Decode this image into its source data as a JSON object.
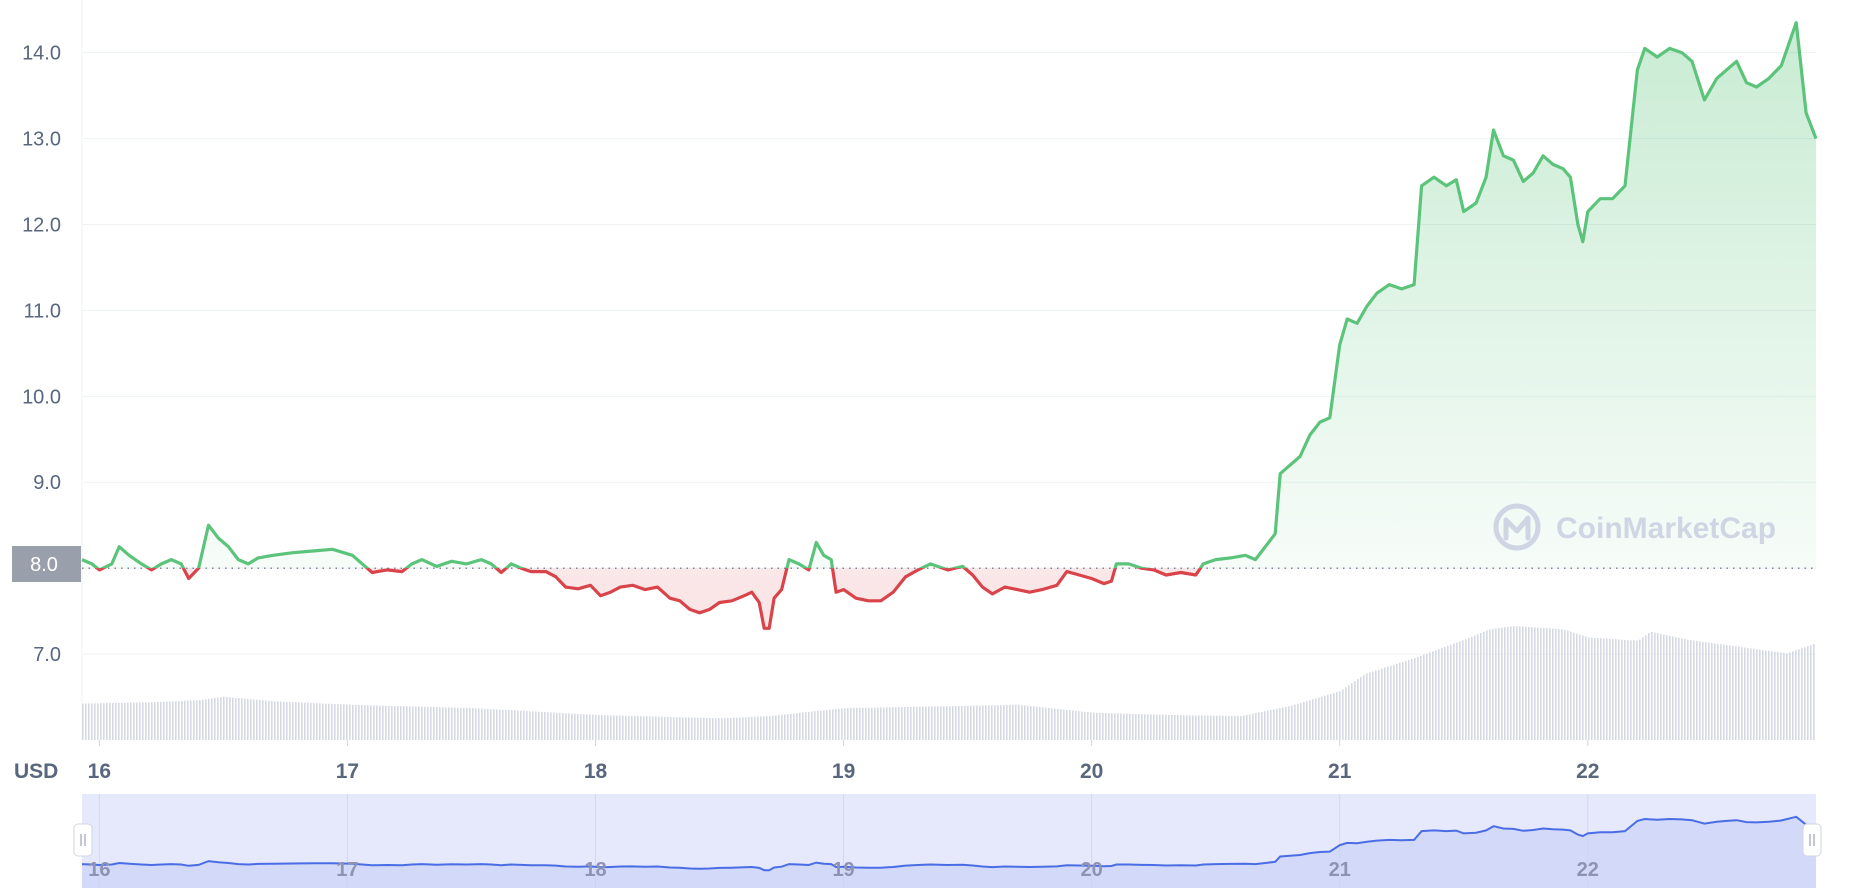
{
  "chart_data": {
    "type": "area",
    "currency_label": "USD",
    "reference_price": 8.0,
    "reference_label": "8.0",
    "y_ticks": [
      "7.0",
      "8.0",
      "9.0",
      "10.0",
      "11.0",
      "12.0",
      "13.0",
      "14.0"
    ],
    "ylim": [
      6.0,
      14.45
    ],
    "grid": true,
    "x_ticks": [
      "16",
      "17",
      "18",
      "19",
      "20",
      "21",
      "22"
    ],
    "xlim": [
      15.93,
      22.92
    ],
    "watermark": "CoinMarketCap",
    "colors": {
      "up": "#16c784",
      "down": "#ea3943",
      "line_up": "#5bc47a",
      "line_down": "#d9434a",
      "area_up": "#5bc47a",
      "grid": "#eff2f5",
      "volume": "#d4d9e3",
      "navigator_fill": "#e6e9fb",
      "navigator_line": "#4a6de5",
      "reference_label_bg": "#9aa0ab"
    },
    "series": [
      {
        "values": [
          [
            15.93,
            8.1
          ],
          [
            15.97,
            8.05
          ],
          [
            16.0,
            7.98
          ],
          [
            16.05,
            8.05
          ],
          [
            16.08,
            8.25
          ],
          [
            16.12,
            8.15
          ],
          [
            16.17,
            8.05
          ],
          [
            16.21,
            7.98
          ],
          [
            16.25,
            8.05
          ],
          [
            16.29,
            8.1
          ],
          [
            16.33,
            8.05
          ],
          [
            16.36,
            7.88
          ],
          [
            16.4,
            8.0
          ],
          [
            16.44,
            8.5
          ],
          [
            16.48,
            8.35
          ],
          [
            16.52,
            8.25
          ],
          [
            16.56,
            8.1
          ],
          [
            16.6,
            8.05
          ],
          [
            16.64,
            8.12
          ],
          [
            16.7,
            8.15
          ],
          [
            16.78,
            8.18
          ],
          [
            16.86,
            8.2
          ],
          [
            16.94,
            8.22
          ],
          [
            17.02,
            8.15
          ],
          [
            17.06,
            8.05
          ],
          [
            17.1,
            7.95
          ],
          [
            17.16,
            7.98
          ],
          [
            17.22,
            7.96
          ],
          [
            17.26,
            8.05
          ],
          [
            17.3,
            8.1
          ],
          [
            17.36,
            8.02
          ],
          [
            17.42,
            8.08
          ],
          [
            17.48,
            8.05
          ],
          [
            17.54,
            8.1
          ],
          [
            17.58,
            8.05
          ],
          [
            17.62,
            7.95
          ],
          [
            17.66,
            8.05
          ],
          [
            17.7,
            8.0
          ],
          [
            17.74,
            7.96
          ],
          [
            17.8,
            7.96
          ],
          [
            17.84,
            7.9
          ],
          [
            17.88,
            7.78
          ],
          [
            17.93,
            7.76
          ],
          [
            17.98,
            7.8
          ],
          [
            18.02,
            7.68
          ],
          [
            18.06,
            7.72
          ],
          [
            18.1,
            7.78
          ],
          [
            18.15,
            7.8
          ],
          [
            18.2,
            7.75
          ],
          [
            18.25,
            7.78
          ],
          [
            18.3,
            7.65
          ],
          [
            18.34,
            7.62
          ],
          [
            18.38,
            7.52
          ],
          [
            18.42,
            7.48
          ],
          [
            18.46,
            7.52
          ],
          [
            18.5,
            7.6
          ],
          [
            18.55,
            7.62
          ],
          [
            18.6,
            7.68
          ],
          [
            18.63,
            7.72
          ],
          [
            18.66,
            7.6
          ],
          [
            18.68,
            7.3
          ],
          [
            18.7,
            7.3
          ],
          [
            18.72,
            7.65
          ],
          [
            18.75,
            7.75
          ],
          [
            18.78,
            8.1
          ],
          [
            18.82,
            8.05
          ],
          [
            18.86,
            7.98
          ],
          [
            18.89,
            8.3
          ],
          [
            18.92,
            8.15
          ],
          [
            18.95,
            8.1
          ],
          [
            18.97,
            7.72
          ],
          [
            19.0,
            7.75
          ],
          [
            19.05,
            7.65
          ],
          [
            19.1,
            7.62
          ],
          [
            19.15,
            7.62
          ],
          [
            19.2,
            7.72
          ],
          [
            19.25,
            7.9
          ],
          [
            19.3,
            7.98
          ],
          [
            19.35,
            8.05
          ],
          [
            19.42,
            7.98
          ],
          [
            19.48,
            8.02
          ],
          [
            19.52,
            7.92
          ],
          [
            19.56,
            7.78
          ],
          [
            19.6,
            7.7
          ],
          [
            19.65,
            7.78
          ],
          [
            19.7,
            7.75
          ],
          [
            19.75,
            7.72
          ],
          [
            19.8,
            7.75
          ],
          [
            19.86,
            7.8
          ],
          [
            19.9,
            7.96
          ],
          [
            19.95,
            7.92
          ],
          [
            20.0,
            7.88
          ],
          [
            20.05,
            7.82
          ],
          [
            20.08,
            7.85
          ],
          [
            20.1,
            8.05
          ],
          [
            20.15,
            8.05
          ],
          [
            20.2,
            8.0
          ],
          [
            20.25,
            7.98
          ],
          [
            20.3,
            7.92
          ],
          [
            20.36,
            7.95
          ],
          [
            20.42,
            7.92
          ],
          [
            20.45,
            8.05
          ],
          [
            20.5,
            8.1
          ],
          [
            20.56,
            8.12
          ],
          [
            20.62,
            8.15
          ],
          [
            20.66,
            8.1
          ],
          [
            20.7,
            8.25
          ],
          [
            20.74,
            8.4
          ],
          [
            20.76,
            9.1
          ],
          [
            20.8,
            9.2
          ],
          [
            20.84,
            9.3
          ],
          [
            20.88,
            9.55
          ],
          [
            20.92,
            9.7
          ],
          [
            20.96,
            9.75
          ],
          [
            21.0,
            10.6
          ],
          [
            21.03,
            10.9
          ],
          [
            21.07,
            10.85
          ],
          [
            21.11,
            11.05
          ],
          [
            21.15,
            11.2
          ],
          [
            21.2,
            11.3
          ],
          [
            21.25,
            11.25
          ],
          [
            21.3,
            11.3
          ],
          [
            21.33,
            12.45
          ],
          [
            21.38,
            12.55
          ],
          [
            21.43,
            12.45
          ],
          [
            21.47,
            12.52
          ],
          [
            21.5,
            12.15
          ],
          [
            21.55,
            12.25
          ],
          [
            21.59,
            12.55
          ],
          [
            21.62,
            13.1
          ],
          [
            21.66,
            12.8
          ],
          [
            21.7,
            12.75
          ],
          [
            21.74,
            12.5
          ],
          [
            21.78,
            12.6
          ],
          [
            21.82,
            12.8
          ],
          [
            21.86,
            12.7
          ],
          [
            21.9,
            12.65
          ],
          [
            21.93,
            12.55
          ],
          [
            21.96,
            12.0
          ],
          [
            21.98,
            11.8
          ],
          [
            22.0,
            12.15
          ],
          [
            22.05,
            12.3
          ],
          [
            22.1,
            12.3
          ],
          [
            22.15,
            12.45
          ],
          [
            22.2,
            13.8
          ],
          [
            22.23,
            14.05
          ],
          [
            22.28,
            13.95
          ],
          [
            22.33,
            14.05
          ],
          [
            22.38,
            14.0
          ],
          [
            22.42,
            13.9
          ],
          [
            22.47,
            13.45
          ],
          [
            22.52,
            13.7
          ],
          [
            22.56,
            13.8
          ],
          [
            22.6,
            13.9
          ],
          [
            22.64,
            13.65
          ],
          [
            22.68,
            13.6
          ],
          [
            22.73,
            13.7
          ],
          [
            22.78,
            13.85
          ],
          [
            22.84,
            14.35
          ],
          [
            22.88,
            13.3
          ],
          [
            22.92,
            13.0
          ]
        ]
      }
    ],
    "volume": [
      [
        15.93,
        0.32
      ],
      [
        16.2,
        0.33
      ],
      [
        16.4,
        0.35
      ],
      [
        16.5,
        0.38
      ],
      [
        16.7,
        0.34
      ],
      [
        17.0,
        0.31
      ],
      [
        17.5,
        0.28
      ],
      [
        18.0,
        0.22
      ],
      [
        18.5,
        0.19
      ],
      [
        18.7,
        0.21
      ],
      [
        19.0,
        0.28
      ],
      [
        19.5,
        0.3
      ],
      [
        19.7,
        0.31
      ],
      [
        20.0,
        0.24
      ],
      [
        20.3,
        0.22
      ],
      [
        20.6,
        0.21
      ],
      [
        20.8,
        0.3
      ],
      [
        21.0,
        0.43
      ],
      [
        21.1,
        0.58
      ],
      [
        21.3,
        0.72
      ],
      [
        21.5,
        0.88
      ],
      [
        21.6,
        0.97
      ],
      [
        21.7,
        1.0
      ],
      [
        21.9,
        0.97
      ],
      [
        22.0,
        0.9
      ],
      [
        22.2,
        0.87
      ],
      [
        22.25,
        0.95
      ],
      [
        22.4,
        0.88
      ],
      [
        22.6,
        0.82
      ],
      [
        22.8,
        0.76
      ],
      [
        22.92,
        0.85
      ]
    ]
  }
}
